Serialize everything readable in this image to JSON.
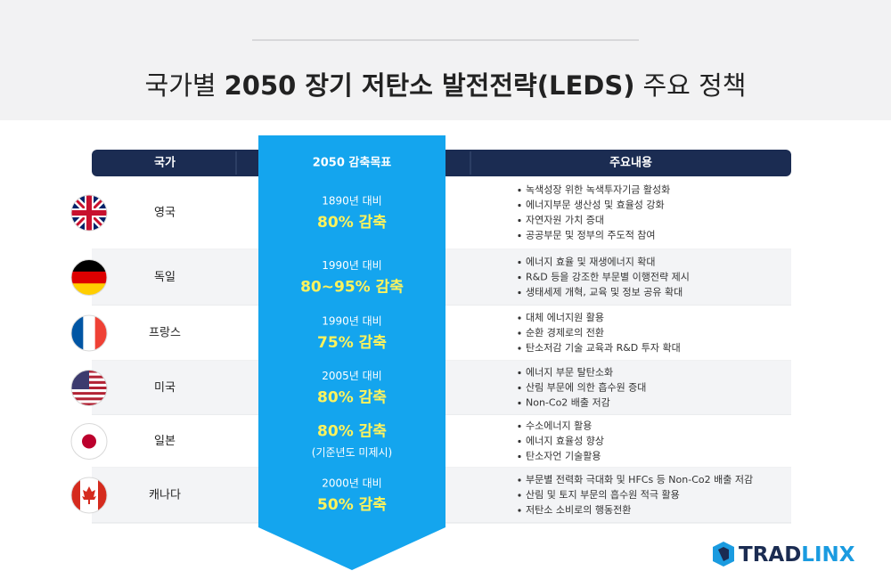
{
  "title": [
    "국가별",
    "2050 장기 저탄소 발전전략(LEDS)",
    "주요 정책"
  ],
  "table": {
    "headers": [
      "국가",
      "2050 감축목표",
      "주요내용"
    ],
    "rows": [
      {
        "country": "영국",
        "base": "1890년 대비",
        "reduction": "80% 감축",
        "items": [
          "녹색성장 위한 녹색투자기금 활성화",
          "에너지부문 생산성 및 효율성 강화",
          "자연자원 가치 증대",
          "공공부문 및 정부의 주도적 참여"
        ]
      },
      {
        "country": "독일",
        "base": "1990년 대비",
        "reduction": "80~95% 감축",
        "items": [
          "에너지 효율 및 재생에너지 확대",
          "R&D 등을 강조한 부문별 이행전략 제시",
          "생태세제 개혁, 교육 및 정보 공유 확대"
        ]
      },
      {
        "country": "프랑스",
        "base": "1990년 대비",
        "reduction": "75% 감축",
        "items": [
          "대체 에너지원 활용",
          "순환 경제로의 전환",
          "탄소저감 기술 교육과 R&D 투자 확대"
        ]
      },
      {
        "country": "미국",
        "base": "2005년 대비",
        "reduction": "80% 감축",
        "items": [
          "에너지 부문 탈탄소화",
          "산림 부문에 의한 흡수원 증대",
          "Non-Co2 배출 저감"
        ]
      },
      {
        "country": "일본",
        "reduction": "80% 감축",
        "note": "(기준년도 미제시)",
        "items": [
          "수소에너지 활용",
          "에너지 효율성 향상",
          "탄소자언 기술활용"
        ]
      },
      {
        "country": "캐나다",
        "base": "2000년 대비",
        "reduction": "50% 감축",
        "items": [
          "부문별 전력화 극대화 및 HFCs 등 Non-Co2 배출 저감",
          "산림 및 토지 부문의 흡수원 적극 활용",
          "저탄소 소비로의 행동전환"
        ]
      }
    ]
  },
  "logo": [
    "TRAD",
    "LINX"
  ]
}
